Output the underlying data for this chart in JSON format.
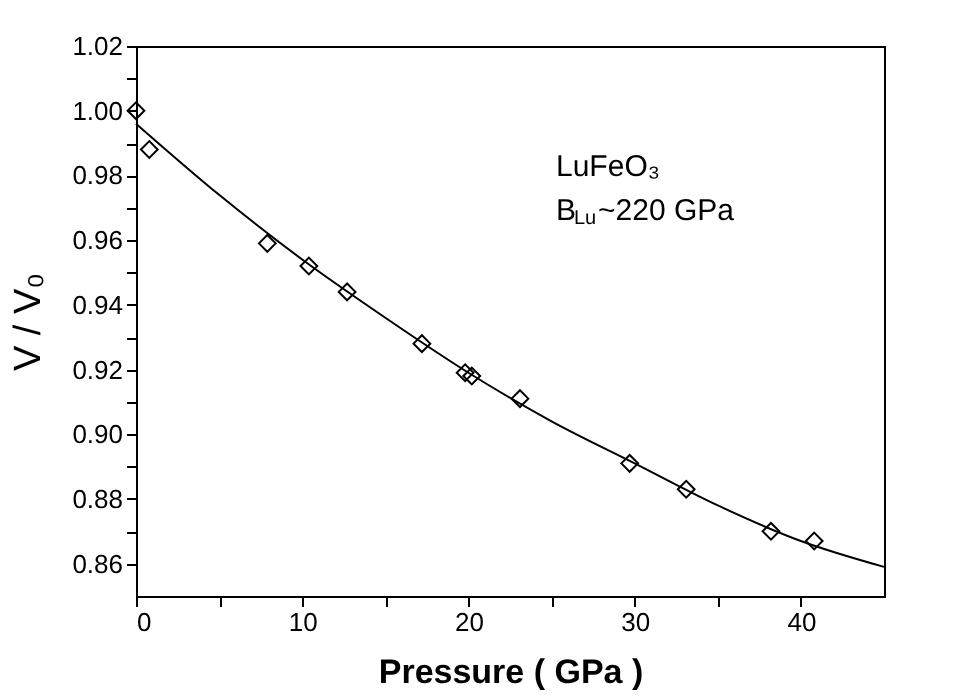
{
  "chart_data": {
    "type": "scatter",
    "xlabel": "Pressure ( GPa )",
    "ylabel": "V / V₀",
    "annotations": [
      "LuFeO₃",
      "B$_{Lu}$~220 GPa"
    ],
    "series": [
      {
        "type": "scatter",
        "color": "#000000",
        "marker": "diamond",
        "x": [
          0,
          0.8,
          7.9,
          10.4,
          12.7,
          17.2,
          19.8,
          20.2,
          23.1,
          29.7,
          33.1,
          38.2,
          40.8
        ],
        "values": [
          1.0,
          0.988,
          0.959,
          0.952,
          0.944,
          0.928,
          0.919,
          0.918,
          0.911,
          0.891,
          0.883,
          0.87,
          0.867
        ]
      },
      {
        "type": "line",
        "color": "#000000",
        "line_style": "solid",
        "x": [
          0,
          5,
          10,
          15,
          20,
          25,
          30,
          35,
          40,
          45
        ],
        "values": [
          0.996,
          0.974,
          0.954,
          0.936,
          0.919,
          0.904,
          0.891,
          0.878,
          0.867,
          0.859
        ]
      }
    ],
    "xlim": [
      0,
      45
    ],
    "xticks": [
      0,
      {
        "value": 5,
        "label": null
      },
      10,
      {
        "value": 15,
        "label": null
      },
      20,
      {
        "value": 25,
        "label": null
      },
      30,
      {
        "value": 35,
        "label": null
      },
      40
    ],
    "ylim": [
      0.85,
      1.02
    ],
    "yticks": [
      0.86,
      {
        "value": 0.87,
        "label": null
      },
      0.88,
      {
        "value": 0.89,
        "label": null
      },
      {
        "value": 0.9,
        "label": "0.90"
      },
      {
        "value": 0.91,
        "label": null
      },
      0.92,
      {
        "value": 0.93,
        "label": null
      },
      0.94,
      {
        "value": 0.95,
        "label": null
      },
      0.96,
      {
        "value": 0.97,
        "label": null
      },
      0.98,
      {
        "value": 0.99,
        "label": null
      },
      {
        "value": 1.0,
        "label": "1.00"
      },
      {
        "value": 1.01,
        "label": null
      },
      1.02
    ],
    "grid": false
  }
}
